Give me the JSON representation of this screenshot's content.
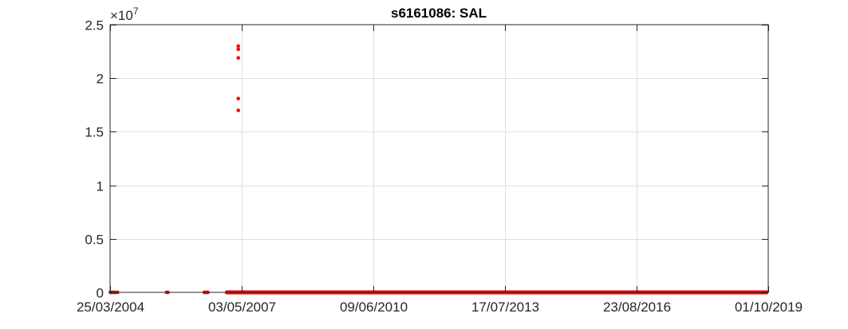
{
  "chart_data": {
    "type": "scatter",
    "title": "s6161086: SAL",
    "xlabel": "",
    "ylabel": "",
    "y_exponent_label": {
      "base": "×10",
      "power": "7"
    },
    "xlim": [
      "25/03/2004",
      "01/10/2019"
    ],
    "ylim": [
      0,
      2.5
    ],
    "y_multiplier": 10000000,
    "x_ticks": [
      "25/03/2004",
      "03/05/2007",
      "09/06/2010",
      "17/07/2013",
      "23/08/2016",
      "01/10/2019"
    ],
    "y_ticks": [
      "0",
      "0.5",
      "1",
      "1.5",
      "2",
      "2.5"
    ],
    "grid": true,
    "marker_color": "#ff0000",
    "series": [
      {
        "points": [
          {
            "x": "27/03/2004",
            "y": 0
          },
          {
            "x": "06/04/2004",
            "y": 0
          },
          {
            "x": "16/04/2004",
            "y": 0
          },
          {
            "x": "28/04/2004",
            "y": 0
          },
          {
            "x": "12/05/2004",
            "y": 0
          },
          {
            "x": "28/05/2004",
            "y": 0
          },
          {
            "x": "25/07/2005",
            "y": 0
          },
          {
            "x": "05/08/2005",
            "y": 0
          },
          {
            "x": "15/06/2006",
            "y": 0
          },
          {
            "x": "25/06/2006",
            "y": 0
          },
          {
            "x": "05/07/2006",
            "y": 0
          },
          {
            "x": "15/07/2006",
            "y": 0
          },
          {
            "x": "03/04/2007",
            "y": 2.3
          },
          {
            "x": "03/04/2007",
            "y": 2.27
          },
          {
            "x": "03/04/2007",
            "y": 2.19
          },
          {
            "x": "03/04/2007",
            "y": 1.81
          },
          {
            "x": "03/04/2007",
            "y": 1.7
          }
        ],
        "dense_range": {
          "start": "10/12/2006",
          "end": "01/10/2019",
          "y": 0
        }
      }
    ]
  }
}
